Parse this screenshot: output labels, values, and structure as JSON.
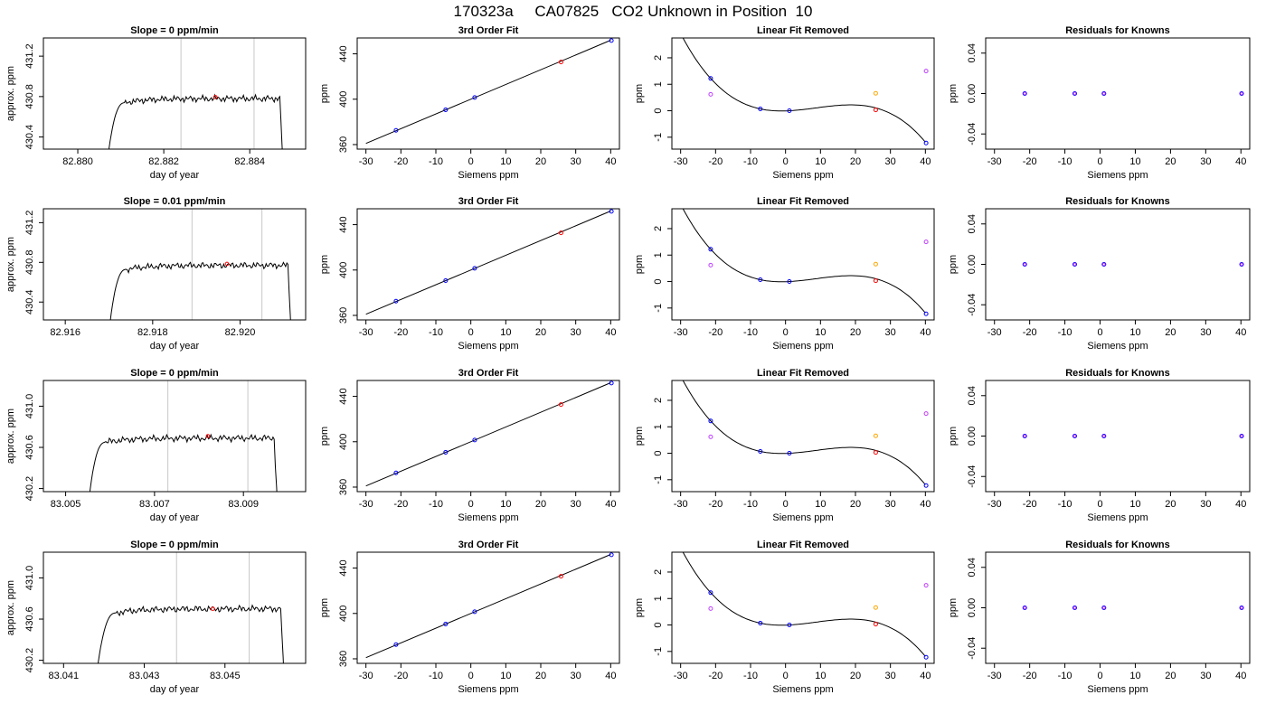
{
  "title": "170323a     CA07825   CO2 Unknown in Position  10",
  "colors": {
    "axis": "#000000",
    "trace": "#000000",
    "window_line": "#c8c8c8",
    "highlight_point": "#ff0000",
    "known_point": "#0000ff",
    "unknown_point": "#ff0000",
    "standard_point": "#ffa500",
    "residual_extra": "#bf3fff",
    "residual_point": "#8000ff"
  },
  "chart_data": [
    {
      "type": "line",
      "row": 0,
      "title": "Slope =  0  ppm/min",
      "xlabel": "day of year",
      "ylabel": "approx. ppm",
      "xlim": [
        82.8792,
        82.8853
      ],
      "ylim": [
        430.28,
        431.38
      ],
      "xticks": [
        "82.880",
        "82.882",
        "82.884"
      ],
      "xtick_values": [
        82.88,
        82.882,
        82.884
      ],
      "yticks": [
        "430.4",
        "430.8",
        "431.2"
      ],
      "ytick_values": [
        430.4,
        430.8,
        431.2
      ],
      "start": 82.8807,
      "rise_end": 82.8811,
      "end": 82.8848,
      "level": 430.78,
      "base": 430.2,
      "window": [
        82.8824,
        82.8841
      ],
      "highlight": [
        82.8832,
        430.795
      ]
    },
    {
      "type": "line",
      "row": 1,
      "title": "Slope =  0.01  ppm/min",
      "xlabel": "day of year",
      "ylabel": "approx. ppm",
      "xlim": [
        82.9155,
        82.9215
      ],
      "ylim": [
        430.22,
        431.34
      ],
      "xticks": [
        "82.916",
        "82.918",
        "82.920"
      ],
      "xtick_values": [
        82.916,
        82.918,
        82.92
      ],
      "yticks": [
        "430.4",
        "430.8",
        "431.2"
      ],
      "ytick_values": [
        430.4,
        430.8,
        431.2
      ],
      "start": 82.917,
      "rise_end": 82.9174,
      "end": 82.9212,
      "level": 430.77,
      "base": 430.1,
      "window": [
        82.9189,
        82.9205
      ],
      "highlight": [
        82.9197,
        430.785
      ]
    },
    {
      "type": "line",
      "row": 2,
      "title": "Slope =  0  ppm/min",
      "xlabel": "day of year",
      "ylabel": "approx. ppm",
      "xlim": [
        83.0045,
        83.0104
      ],
      "ylim": [
        430.17,
        431.25
      ],
      "xticks": [
        "83.005",
        "83.007",
        "83.009"
      ],
      "xtick_values": [
        83.005,
        83.007,
        83.009
      ],
      "yticks": [
        "430.2",
        "430.6",
        "431.0"
      ],
      "ytick_values": [
        430.2,
        430.6,
        431.0
      ],
      "start": 83.0055,
      "rise_end": 83.0059,
      "end": 83.0098,
      "level": 430.69,
      "base": 430.0,
      "window": [
        83.0073,
        83.0091
      ],
      "highlight": [
        83.0082,
        430.71
      ]
    },
    {
      "type": "line",
      "row": 3,
      "title": "Slope =  0  ppm/min",
      "xlabel": "day of year",
      "ylabel": "approx. ppm",
      "xlim": [
        83.0405,
        83.047
      ],
      "ylim": [
        430.17,
        431.25
      ],
      "xticks": [
        "83.041",
        "83.043",
        "83.045"
      ],
      "xtick_values": [
        83.041,
        83.043,
        83.045
      ],
      "yticks": [
        "430.2",
        "430.6",
        "431.0"
      ],
      "ytick_values": [
        430.2,
        430.6,
        431.0
      ],
      "start": 83.0418,
      "rise_end": 83.0423,
      "end": 83.0465,
      "level": 430.7,
      "base": 430.0,
      "window": [
        83.0438,
        83.0456
      ],
      "highlight": [
        83.0447,
        430.7
      ]
    },
    {
      "type": "scatter",
      "title": "3rd Order Fit",
      "xlabel": "Siemens ppm",
      "ylabel": "ppm",
      "xlim": [
        -32.5,
        42.5
      ],
      "ylim": [
        356,
        454
      ],
      "xticks": [
        "-30",
        "-20",
        "-10",
        "0",
        "10",
        "20",
        "30",
        "40"
      ],
      "xtick_values": [
        -30,
        -20,
        -10,
        0,
        10,
        20,
        30,
        40
      ],
      "yticks": [
        "360",
        "400",
        "440"
      ],
      "ytick_values": [
        360,
        400,
        440
      ],
      "fit_line": [
        [
          -30,
          361
        ],
        [
          40,
          452
        ]
      ],
      "points": [
        {
          "x": -21.4,
          "y": 372.5,
          "role": "known"
        },
        {
          "x": -7.2,
          "y": 390.7,
          "role": "known"
        },
        {
          "x": 1.1,
          "y": 401.5,
          "role": "known"
        },
        {
          "x": 40.2,
          "y": 451.7,
          "role": "known"
        },
        {
          "x": 25.8,
          "y": 432.8,
          "role": "unknown"
        }
      ]
    },
    {
      "type": "scatter",
      "title": "Linear Fit Removed",
      "xlabel": "Siemens ppm",
      "ylabel": "ppm",
      "xlim": [
        -32.5,
        42.5
      ],
      "ylim": [
        -1.45,
        2.75
      ],
      "xticks": [
        "-30",
        "-20",
        "-10",
        "0",
        "10",
        "20",
        "30",
        "40"
      ],
      "xtick_values": [
        -30,
        -20,
        -10,
        0,
        10,
        20,
        30,
        40
      ],
      "yticks": [
        "-1",
        "0",
        "1",
        "2"
      ],
      "ytick_values": [
        -1,
        0,
        1,
        2
      ],
      "curve_points": [
        [
          -21.4,
          1.22
        ],
        [
          -7.2,
          0.07
        ],
        [
          1.1,
          0.0
        ],
        [
          40.2,
          -1.22
        ]
      ],
      "points": [
        {
          "x": -21.4,
          "y": 1.22,
          "role": "known"
        },
        {
          "x": -7.2,
          "y": 0.07,
          "role": "known"
        },
        {
          "x": 1.1,
          "y": 0.0,
          "role": "known"
        },
        {
          "x": 40.2,
          "y": -1.22,
          "role": "known"
        },
        {
          "x": 25.8,
          "y": 0.03,
          "role": "unknown"
        },
        {
          "x": 25.8,
          "y": 0.66,
          "role": "standard"
        },
        {
          "x": -21.4,
          "y": 0.62,
          "role": "extra"
        },
        {
          "x": 40.2,
          "y": 1.5,
          "role": "extra"
        }
      ]
    },
    {
      "type": "scatter",
      "title": "Residuals for Knowns",
      "xlabel": "Siemens ppm",
      "ylabel": "ppm",
      "xlim": [
        -32.5,
        42.5
      ],
      "ylim": [
        -0.055,
        0.055
      ],
      "xticks": [
        "-30",
        "-20",
        "-10",
        "0",
        "10",
        "20",
        "30",
        "40"
      ],
      "xtick_values": [
        -30,
        -20,
        -10,
        0,
        10,
        20,
        30,
        40
      ],
      "yticks": [
        "-0.04",
        "0.00",
        "0.04"
      ],
      "ytick_values": [
        -0.04,
        0,
        0.04
      ],
      "points": [
        {
          "x": -21.4,
          "y": 0,
          "role": "residual"
        },
        {
          "x": -7.2,
          "y": 0,
          "role": "residual"
        },
        {
          "x": 1.1,
          "y": 0,
          "role": "residual"
        },
        {
          "x": 40.2,
          "y": 0,
          "role": "residual"
        }
      ]
    }
  ]
}
